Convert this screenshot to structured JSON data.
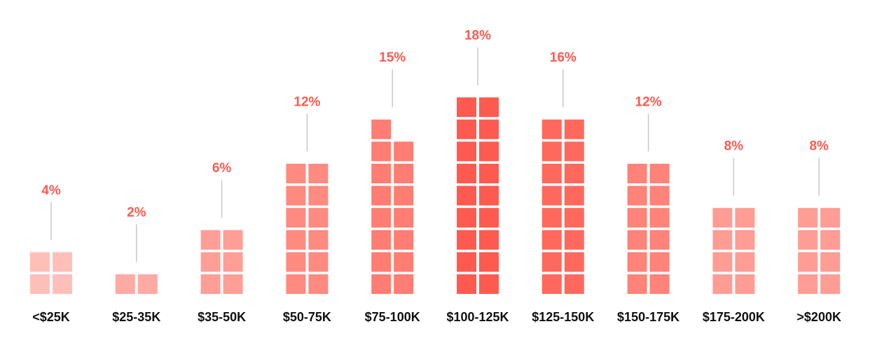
{
  "chart_data": {
    "type": "waffle-column",
    "categories": [
      "<$25K",
      "$25-35K",
      "$35-50K",
      "$50-75K",
      "$75-100K",
      "$100-125K",
      "$125-150K",
      "$150-175K",
      "$175-200K",
      ">$200K"
    ],
    "values": [
      4,
      2,
      6,
      12,
      15,
      18,
      16,
      12,
      8,
      8
    ],
    "value_labels": [
      "4%",
      "2%",
      "6%",
      "12%",
      "15%",
      "18%",
      "16%",
      "12%",
      "8%",
      "8%"
    ],
    "colors": [
      "#ffbfb9",
      "#ffaaa3",
      "#ff9e96",
      "#ff8a80",
      "#ff7d72",
      "#ff5a4f",
      "#ff695d",
      "#ff8378",
      "#ff9c94",
      "#ff9c94"
    ],
    "label_color": "#ff5a4f"
  }
}
